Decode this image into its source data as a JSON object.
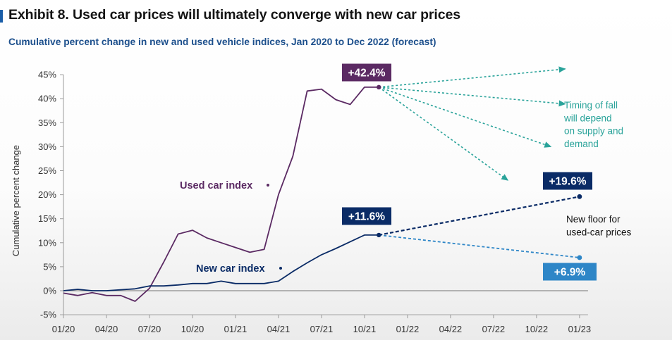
{
  "title": "Exhibit 8. Used car prices will ultimately converge with new car prices",
  "subtitle": "Cumulative percent change in new and used vehicle indices, Jan 2020 to Dec 2022 (forecast)",
  "colors": {
    "used": "#5b2a63",
    "new": "#0a2b66",
    "new_dashed": "#1a4f8c",
    "teal": "#2aa39a",
    "floor_text": "#111111",
    "low_badge": "#2e86c7"
  },
  "chart_data": {
    "type": "line",
    "ylabel": "Cumulative percent change",
    "ylim": [
      -5,
      45
    ],
    "yticks": [
      "45%",
      "40%",
      "35%",
      "30%",
      "25%",
      "20%",
      "15%",
      "10%",
      "5%",
      "0%",
      "-5%"
    ],
    "xticks": [
      {
        "label": "01/20",
        "m": 0
      },
      {
        "label": "04/20",
        "m": 3
      },
      {
        "label": "07/20",
        "m": 6
      },
      {
        "label": "10/20",
        "m": 9
      },
      {
        "label": "01/21",
        "m": 12
      },
      {
        "label": "04/21",
        "m": 15
      },
      {
        "label": "07/21",
        "m": 18
      },
      {
        "label": "10/21",
        "m": 21
      },
      {
        "label": "01/22",
        "m": 24
      },
      {
        "label": "04/22",
        "m": 27
      },
      {
        "label": "07/22",
        "m": 30
      },
      {
        "label": "10/22",
        "m": 33
      },
      {
        "label": "01/23",
        "m": 36
      }
    ],
    "series": [
      {
        "name": "Used car index",
        "x": [
          0,
          1,
          2,
          3,
          4,
          5,
          6,
          7,
          8,
          9,
          10,
          11,
          12,
          13,
          14,
          15,
          16,
          17,
          18,
          19,
          20,
          21,
          22
        ],
        "values": [
          -0.5,
          -1.0,
          -0.4,
          -1.0,
          -1.0,
          -2.2,
          0.5,
          6.0,
          11.8,
          12.6,
          11.0,
          10.0,
          9.0,
          8.0,
          8.6,
          20.0,
          28.0,
          41.6,
          42.0,
          39.8,
          38.8,
          42.4,
          42.4
        ]
      },
      {
        "name": "New car index",
        "x": [
          0,
          1,
          2,
          3,
          4,
          5,
          6,
          7,
          8,
          9,
          10,
          11,
          12,
          13,
          14,
          15,
          16,
          17,
          18,
          19,
          20,
          21,
          22
        ],
        "values": [
          0,
          0.3,
          0,
          0,
          0.2,
          0.4,
          1.0,
          1.0,
          1.2,
          1.5,
          1.5,
          2.0,
          1.5,
          1.5,
          1.5,
          2.0,
          4.0,
          5.8,
          7.5,
          8.8,
          10.2,
          11.6,
          11.6
        ]
      }
    ],
    "forecast_new": [
      {
        "from": [
          22,
          11.6
        ],
        "to": [
          36,
          19.6
        ]
      },
      {
        "from": [
          22,
          11.6
        ],
        "to": [
          36,
          6.9
        ]
      }
    ],
    "forecast_used": [
      {
        "from": [
          22,
          42.4
        ],
        "to": [
          35,
          46.2
        ]
      },
      {
        "from": [
          22,
          42.4
        ],
        "to": [
          35,
          38.9
        ]
      },
      {
        "from": [
          22,
          42.4
        ],
        "to": [
          34,
          30.0
        ]
      },
      {
        "from": [
          22,
          42.4
        ],
        "to": [
          31,
          23.0
        ]
      }
    ],
    "series_labels": {
      "used": "Used car index",
      "new": "New car index"
    },
    "callouts": {
      "used_peak": "+42.4%",
      "new_current": "+11.6%",
      "new_high": "+19.6%",
      "new_low": "+6.9%"
    },
    "annotations": {
      "timing": [
        "Timing of fall",
        "will depend",
        "on supply and",
        "demand"
      ],
      "floor": [
        "New floor for",
        "used-car prices"
      ]
    }
  }
}
